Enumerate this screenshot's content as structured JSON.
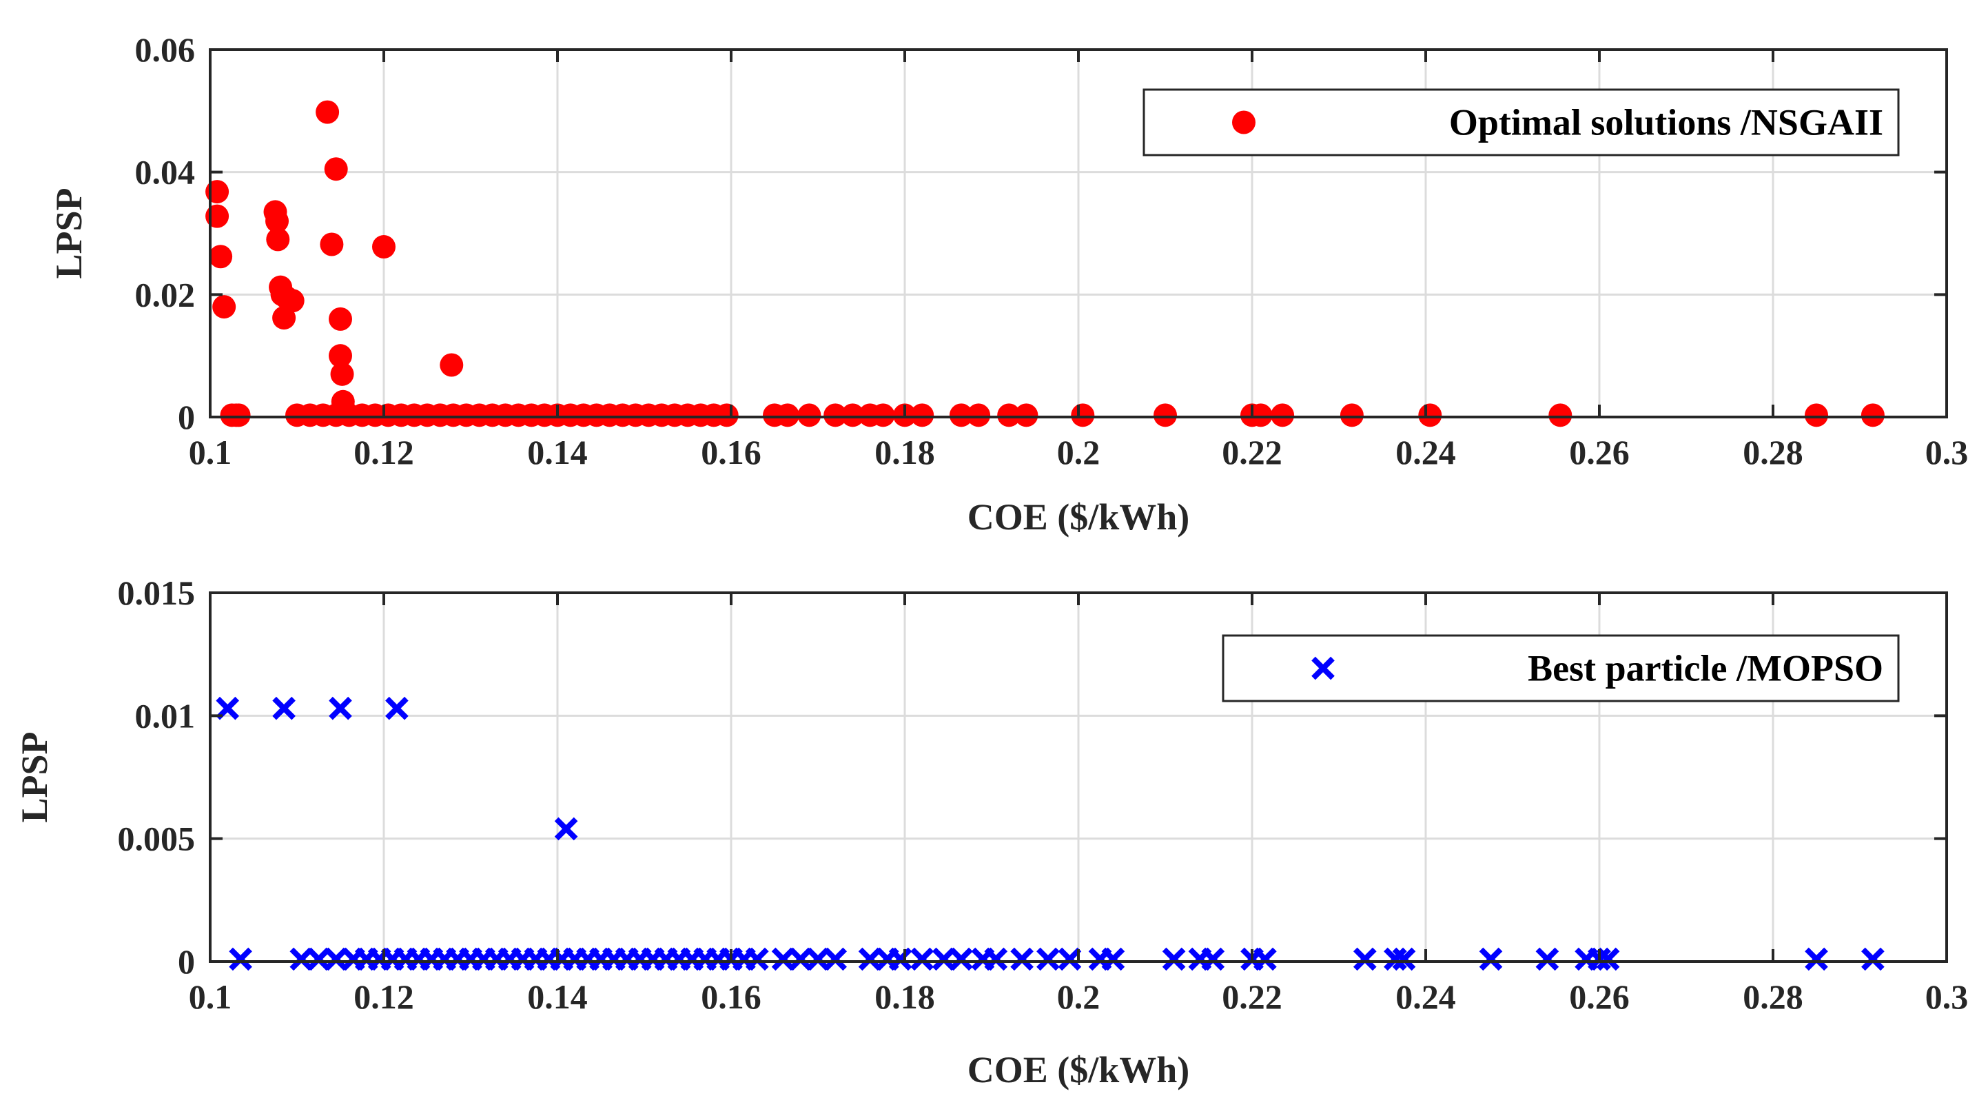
{
  "chart_data": [
    {
      "type": "scatter",
      "xlabel": "COE ($/kWh)",
      "ylabel": "LPSP",
      "xlim": [
        0.1,
        0.3
      ],
      "ylim": [
        0,
        0.06
      ],
      "xticks": [
        0.1,
        0.12,
        0.14,
        0.16,
        0.18,
        0.2,
        0.22,
        0.24,
        0.26,
        0.28,
        0.3
      ],
      "xtick_labels": [
        "0.1",
        "0.12",
        "0.14",
        "0.16",
        "0.18",
        "0.2",
        "0.22",
        "0.24",
        "0.26",
        "0.28",
        "0.3"
      ],
      "yticks": [
        0,
        0.02,
        0.04,
        0.06
      ],
      "ytick_labels": [
        "0",
        "0.02",
        "0.04",
        "0.06"
      ],
      "grid": true,
      "legend_position": "top-right",
      "series": [
        {
          "name": "Optimal solutions /NSGAII",
          "marker": "circle",
          "color": "#ff0000",
          "x": [
            0.1008,
            0.1008,
            0.1012,
            0.1016,
            0.1025,
            0.1033,
            0.1075,
            0.1077,
            0.1078,
            0.1081,
            0.1083,
            0.1085,
            0.1088,
            0.1095,
            0.1135,
            0.114,
            0.1145,
            0.115,
            0.115,
            0.1152,
            0.1153,
            0.1155,
            0.12,
            0.1278,
            0.103,
            0.11,
            0.1115,
            0.113,
            0.1145,
            0.116,
            0.1175,
            0.119,
            0.1205,
            0.122,
            0.1235,
            0.125,
            0.1265,
            0.128,
            0.1295,
            0.131,
            0.1325,
            0.134,
            0.1355,
            0.137,
            0.1385,
            0.14,
            0.1415,
            0.143,
            0.1445,
            0.146,
            0.1475,
            0.149,
            0.1505,
            0.152,
            0.1535,
            0.155,
            0.1565,
            0.158,
            0.1595,
            0.165,
            0.1665,
            0.169,
            0.172,
            0.174,
            0.176,
            0.1775,
            0.18,
            0.182,
            0.1865,
            0.1885,
            0.192,
            0.194,
            0.2005,
            0.21,
            0.22,
            0.221,
            0.2235,
            0.2315,
            0.2405,
            0.2555,
            0.285,
            0.2915
          ],
          "y": [
            0.0368,
            0.0328,
            0.0262,
            0.018,
            0.0003,
            0.0003,
            0.0335,
            0.032,
            0.029,
            0.0212,
            0.02,
            0.0162,
            0.0195,
            0.019,
            0.0498,
            0.0282,
            0.0405,
            0.016,
            0.01,
            0.007,
            0.0025,
            0.001,
            0.0278,
            0.0085,
            0.0003,
            0.0003,
            0.0003,
            0.0003,
            0.0003,
            0.0003,
            0.0003,
            0.0003,
            0.0003,
            0.0003,
            0.0003,
            0.0003,
            0.0003,
            0.0003,
            0.0003,
            0.0003,
            0.0003,
            0.0003,
            0.0003,
            0.0003,
            0.0003,
            0.0003,
            0.0003,
            0.0003,
            0.0003,
            0.0003,
            0.0003,
            0.0003,
            0.0003,
            0.0003,
            0.0003,
            0.0003,
            0.0003,
            0.0003,
            0.0003,
            0.0003,
            0.0003,
            0.0003,
            0.0003,
            0.0003,
            0.0003,
            0.0003,
            0.0003,
            0.0003,
            0.0003,
            0.0003,
            0.0003,
            0.0003,
            0.0003,
            0.0003,
            0.0003,
            0.0003,
            0.0003,
            0.0003,
            0.0003,
            0.0003,
            0.0003,
            0.0003
          ]
        }
      ]
    },
    {
      "type": "scatter",
      "xlabel": "COE ($/kWh)",
      "ylabel": "LPSP",
      "xlim": [
        0.1,
        0.3
      ],
      "ylim": [
        0,
        0.015
      ],
      "xticks": [
        0.1,
        0.12,
        0.14,
        0.16,
        0.18,
        0.2,
        0.22,
        0.24,
        0.26,
        0.28,
        0.3
      ],
      "xtick_labels": [
        "0.1",
        "0.12",
        "0.14",
        "0.16",
        "0.18",
        "0.2",
        "0.22",
        "0.24",
        "0.26",
        "0.28",
        "0.3"
      ],
      "yticks": [
        0,
        0.005,
        0.01,
        0.015
      ],
      "ytick_labels": [
        "0",
        "0.005",
        "0.01",
        "0.015"
      ],
      "grid": true,
      "legend_position": "top-right",
      "series": [
        {
          "name": "Best particle /MOPSO",
          "marker": "x",
          "color": "#0000ff",
          "x": [
            0.102,
            0.1085,
            0.115,
            0.1215,
            0.141,
            0.1035,
            0.1105,
            0.1125,
            0.1145,
            0.1165,
            0.118,
            0.1195,
            0.121,
            0.1225,
            0.124,
            0.1255,
            0.127,
            0.1285,
            0.13,
            0.1315,
            0.133,
            0.1345,
            0.136,
            0.1375,
            0.139,
            0.1405,
            0.142,
            0.1435,
            0.145,
            0.1465,
            0.148,
            0.1495,
            0.151,
            0.1525,
            0.154,
            0.1555,
            0.157,
            0.1585,
            0.16,
            0.1615,
            0.163,
            0.166,
            0.168,
            0.17,
            0.172,
            0.176,
            0.178,
            0.1795,
            0.182,
            0.1845,
            0.1865,
            0.189,
            0.1905,
            0.1935,
            0.1965,
            0.199,
            0.2025,
            0.204,
            0.211,
            0.214,
            0.2155,
            0.22,
            0.2215,
            0.233,
            0.2365,
            0.2375,
            0.2475,
            0.254,
            0.2585,
            0.26,
            0.261,
            0.285,
            0.2915
          ],
          "y": [
            0.0103,
            0.0103,
            0.0103,
            0.0103,
            0.0054,
            0.0001,
            0.0001,
            0.0001,
            0.0001,
            0.0001,
            0.0001,
            0.0001,
            0.0001,
            0.0001,
            0.0001,
            0.0001,
            0.0001,
            0.0001,
            0.0001,
            0.0001,
            0.0001,
            0.0001,
            0.0001,
            0.0001,
            0.0001,
            0.0001,
            0.0001,
            0.0001,
            0.0001,
            0.0001,
            0.0001,
            0.0001,
            0.0001,
            0.0001,
            0.0001,
            0.0001,
            0.0001,
            0.0001,
            0.0001,
            0.0001,
            0.0001,
            0.0001,
            0.0001,
            0.0001,
            0.0001,
            0.0001,
            0.0001,
            0.0001,
            0.0001,
            0.0001,
            0.0001,
            0.0001,
            0.0001,
            0.0001,
            0.0001,
            0.0001,
            0.0001,
            0.0001,
            0.0001,
            0.0001,
            0.0001,
            0.0001,
            0.0001,
            0.0001,
            0.0001,
            0.0001,
            0.0001,
            0.0001,
            0.0001,
            0.0001,
            0.0001,
            0.0001,
            0.0001
          ]
        }
      ]
    }
  ]
}
